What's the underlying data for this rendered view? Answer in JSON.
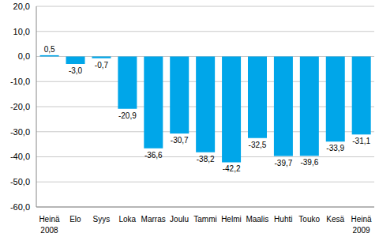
{
  "chart_data": {
    "type": "bar",
    "categories": [
      "Heinä",
      "Elo",
      "Syys",
      "Loka",
      "Marras",
      "Joulu",
      "Tammi",
      "Helmi",
      "Maalis",
      "Huhti",
      "Touko",
      "Kesä",
      "Heinä"
    ],
    "category_years": [
      "2008",
      null,
      null,
      null,
      null,
      null,
      null,
      null,
      null,
      null,
      null,
      null,
      "2009"
    ],
    "values": [
      0.5,
      -3.0,
      -0.7,
      -20.9,
      -36.6,
      -30.7,
      -38.2,
      -42.2,
      -32.5,
      -39.7,
      -39.6,
      -33.9,
      -31.1
    ],
    "value_labels": [
      "0,5",
      "-3,0",
      "-0,7",
      "-20,9",
      "-36,6",
      "-30,7",
      "-38,2",
      "-42,2",
      "-32,5",
      "-39,7",
      "-39,6",
      "-33,9",
      "-31,1"
    ],
    "data_labels": true,
    "color": "#00a6e9",
    "ylim": [
      -60,
      20
    ],
    "yticks": [
      {
        "value": 20,
        "label": "20,0"
      },
      {
        "value": 10,
        "label": "10,0"
      },
      {
        "value": 0,
        "label": "0,0"
      },
      {
        "value": -10,
        "label": "-10,0"
      },
      {
        "value": -20,
        "label": "-20,0"
      },
      {
        "value": -30,
        "label": "-30,0"
      },
      {
        "value": -40,
        "label": "-40,0"
      },
      {
        "value": -50,
        "label": "-50,0"
      },
      {
        "value": -60,
        "label": "-60,0"
      }
    ],
    "grid": true
  }
}
